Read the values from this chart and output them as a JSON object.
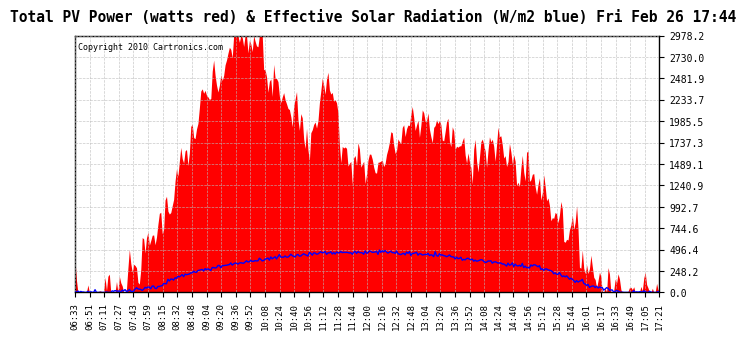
{
  "title": "Total PV Power (watts red) & Effective Solar Radiation (W/m2 blue) Fri Feb 26 17:44",
  "copyright_text": "Copyright 2010 Cartronics.com",
  "background_color": "#ffffff",
  "plot_bg_color": "#ffffff",
  "grid_color": "#bbbbbb",
  "title_color": "#000000",
  "title_fontsize": 10.5,
  "ylim": [
    0,
    2978.2
  ],
  "yticks": [
    0.0,
    248.2,
    496.4,
    744.6,
    992.7,
    1240.9,
    1489.1,
    1737.3,
    1985.5,
    2233.7,
    2481.9,
    2730.0,
    2978.2
  ],
  "ytick_labels": [
    "0.0",
    "248.2",
    "496.4",
    "744.6",
    "992.7",
    "1240.9",
    "1489.1",
    "1737.3",
    "1985.5",
    "2233.7",
    "2481.9",
    "2730.0",
    "2978.2"
  ],
  "red_fill_color": "#ff0000",
  "blue_line_color": "#0000ff",
  "xtick_labels": [
    "06:33",
    "06:51",
    "07:11",
    "07:27",
    "07:43",
    "07:59",
    "08:15",
    "08:32",
    "08:48",
    "09:04",
    "09:20",
    "09:36",
    "09:52",
    "10:08",
    "10:24",
    "10:40",
    "10:56",
    "11:12",
    "11:28",
    "11:44",
    "12:00",
    "12:16",
    "12:32",
    "12:48",
    "13:04",
    "13:20",
    "13:36",
    "13:52",
    "14:08",
    "14:24",
    "14:40",
    "14:56",
    "15:12",
    "15:28",
    "15:44",
    "16:01",
    "16:17",
    "16:33",
    "16:49",
    "17:05",
    "17:21"
  ],
  "num_points": 410
}
